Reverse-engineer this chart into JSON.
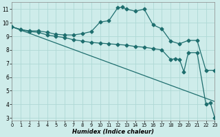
{
  "xlabel": "Humidex (Indice chaleur)",
  "xlim": [
    0,
    23
  ],
  "ylim": [
    2.8,
    11.5
  ],
  "xticks": [
    0,
    1,
    2,
    3,
    4,
    5,
    6,
    7,
    8,
    9,
    10,
    11,
    12,
    13,
    14,
    15,
    16,
    17,
    18,
    19,
    20,
    21,
    22,
    23
  ],
  "yticks": [
    3,
    4,
    5,
    6,
    7,
    8,
    9,
    10,
    11
  ],
  "bg_color": "#ceecea",
  "grid_color": "#aed8d5",
  "line_color": "#1e6e6e",
  "line1_x": [
    0,
    1,
    2,
    3,
    4,
    5,
    6,
    7,
    8,
    9,
    10,
    11,
    12,
    12.5,
    13,
    14,
    15,
    16,
    17,
    18,
    19,
    20,
    21,
    22,
    23
  ],
  "line1_y": [
    9.7,
    9.5,
    9.4,
    9.4,
    9.3,
    9.15,
    9.1,
    9.1,
    9.2,
    9.35,
    10.05,
    10.15,
    11.1,
    11.15,
    11.0,
    10.85,
    11.0,
    9.85,
    9.55,
    8.65,
    8.45,
    8.7,
    8.7,
    6.5,
    6.5
  ],
  "line2_x": [
    0,
    1,
    2,
    3,
    4,
    5,
    6,
    7,
    8,
    9,
    10,
    11,
    12,
    13,
    14,
    15,
    16,
    17,
    18,
    18.5,
    19,
    19.5,
    20,
    21,
    22,
    22.5,
    23
  ],
  "line2_y": [
    9.7,
    9.5,
    9.35,
    9.3,
    9.1,
    9.0,
    8.9,
    8.75,
    8.65,
    8.55,
    8.5,
    8.45,
    8.4,
    8.35,
    8.25,
    8.2,
    8.1,
    8.0,
    7.3,
    7.35,
    7.3,
    6.4,
    7.8,
    7.8,
    4.0,
    4.1,
    3.0
  ],
  "line3_x": [
    0,
    23
  ],
  "line3_y": [
    9.7,
    4.2
  ],
  "marker": "D",
  "markersize": 2.5,
  "linewidth": 0.9
}
